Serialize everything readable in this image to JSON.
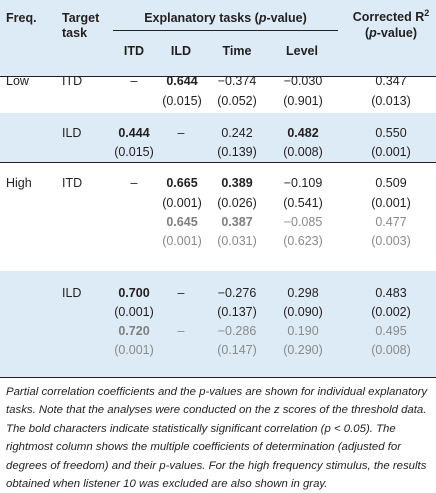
{
  "header": {
    "freq": "Freq.",
    "target_line1": "Target",
    "target_line2": "task",
    "explanatory": "Explanatory tasks (",
    "explanatory_p": "p",
    "explanatory_end": "-value)",
    "corrected_line1": "Corrected R",
    "corrected_sup": "2",
    "corrected_line2_open": "(",
    "corrected_line2_p": "p",
    "corrected_line2_end": "-value)",
    "sub": [
      "ITD",
      "ILD",
      "Time",
      "Level"
    ]
  },
  "rows": {
    "low": "Low",
    "high": "High",
    "low_itd": {
      "task": "ITD",
      "itd": "–",
      "ild": "0.644",
      "time": "−0.374",
      "level": "−0.030",
      "r2": "0.347",
      "p_ild": "(0.015)",
      "p_time": "(0.052)",
      "p_level": "(0.901)",
      "p_r2": "(0.013)"
    },
    "low_ild": {
      "task": "ILD",
      "itd": "0.444",
      "ild": "–",
      "time": "0.242",
      "level": "0.482",
      "r2": "0.550",
      "p_itd": "(0.015)",
      "p_time": "(0.139)",
      "p_level": "(0.008)",
      "p_r2": "(0.001)"
    },
    "high_itd": {
      "task": "ITD",
      "itd": "–",
      "ild": "0.665",
      "time": "0.389",
      "level": "−0.109",
      "r2": "0.509",
      "p_ild": "(0.001)",
      "p_time": "(0.026)",
      "p_level": "(0.541)",
      "p_r2": "(0.001)",
      "g_ild": "0.645",
      "g_time": "0.387",
      "g_level": "−0.085",
      "g_r2": "0.477",
      "gp_ild": "(0.001)",
      "gp_time": "(0.031)",
      "gp_level": "(0.623)",
      "gp_r2": "(0.003)"
    },
    "high_ild": {
      "task": "ILD",
      "itd": "0.700",
      "ild": "–",
      "time": "−0.276",
      "level": "0.298",
      "r2": "0.483",
      "p_itd": "(0.001)",
      "p_time": "(0.137)",
      "p_level": "(0.090)",
      "p_r2": "(0.002)",
      "g_itd": "0.720",
      "g_ild": "–",
      "g_time": "−0.286",
      "g_level": "0.190",
      "g_r2": "0.495",
      "gp_itd": "(0.001)",
      "gp_time": "(0.147)",
      "gp_level": "(0.290)",
      "gp_r2": "(0.008)"
    }
  },
  "caption": {
    "part1": "Partial correlation coefficients and the p-values are shown for individual explanatory tasks. Note that the analyses were conducted on the z scores of the threshold data. The bold characters indicate statistically significant correlation (",
    "p_sym": "p",
    "part2": " < 0.05). The rightmost column shows the multiple coefficients of determination (adjusted for degrees of freedom) and their p-values. For the high frequency stimulus, the results obtained when listener 10 was excluded are also shown in gray."
  },
  "colors": {
    "shade": "#dcebf5",
    "text": "#231f20",
    "gray": "#8a8a8a"
  }
}
